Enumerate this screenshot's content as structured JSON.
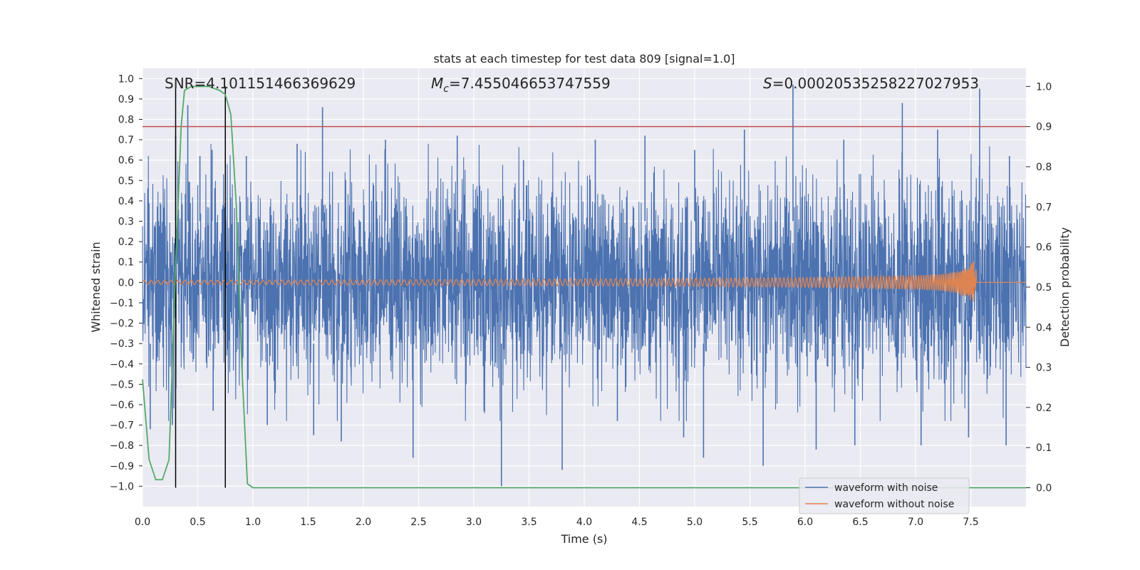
{
  "chart_data": {
    "type": "line",
    "title": "stats at each timestep for test data 809 [signal=1.0]",
    "xlabel": "Time (s)",
    "ylabel_left": "Whitened strain",
    "ylabel_right": "Detection probability",
    "xlim": [
      0.0,
      8.0
    ],
    "ylim_left": [
      -1.1,
      1.05
    ],
    "ylim_right": [
      -0.047,
      1.045
    ],
    "x_ticks": [
      0.0,
      0.5,
      1.0,
      1.5,
      2.0,
      2.5,
      3.0,
      3.5,
      4.0,
      4.5,
      5.0,
      5.5,
      6.0,
      6.5,
      7.0,
      7.5
    ],
    "x_tick_labels": [
      "0.0",
      "0.5",
      "1.0",
      "1.5",
      "2.0",
      "2.5",
      "3.0",
      "3.5",
      "4.0",
      "4.5",
      "5.0",
      "5.5",
      "6.0",
      "6.5",
      "7.0",
      "7.5"
    ],
    "y_left_ticks": [
      1.0,
      0.9,
      0.8,
      0.7,
      0.6,
      0.5,
      0.4,
      0.3,
      0.2,
      0.1,
      0.0,
      -0.1,
      -0.2,
      -0.3,
      -0.4,
      -0.5,
      -0.6,
      -0.7,
      -0.8,
      -0.9,
      -1.0
    ],
    "y_left_tick_labels": [
      "1.0",
      "0.9",
      "0.8",
      "0.7",
      "0.6",
      "0.5",
      "0.4",
      "0.3",
      "0.2",
      "0.1",
      "0.0",
      "−0.1",
      "−0.2",
      "−0.3",
      "−0.4",
      "−0.5",
      "−0.6",
      "−0.7",
      "−0.8",
      "−0.9",
      "−1.0"
    ],
    "y_right_ticks": [
      1.0,
      0.9,
      0.8,
      0.7,
      0.6,
      0.5,
      0.4,
      0.3,
      0.2,
      0.1,
      0.0
    ],
    "y_right_tick_labels": [
      "1.0",
      "0.9",
      "0.8",
      "0.7",
      "0.6",
      "0.5",
      "0.4",
      "0.3",
      "0.2",
      "0.1",
      "0.0"
    ],
    "annotations": {
      "snr": "SNR=4.101151466369629",
      "mc_symbol": "M",
      "mc_sub": "c",
      "mc_value": "=7.455046653747559",
      "s_symbol": "S",
      "s_value": "=0.00020535258227027953"
    },
    "series": [
      {
        "name": "waveform with noise",
        "color": "#4c72b0",
        "axis": "left",
        "envelope_typical": 0.3,
        "spikes": [
          {
            "x": 0.41,
            "y": 0.87
          },
          {
            "x": 0.3,
            "y": 0.72
          },
          {
            "x": 0.52,
            "y": 0.62
          },
          {
            "x": 0.63,
            "y": 0.65
          },
          {
            "x": 0.94,
            "y": 0.62
          },
          {
            "x": 1.4,
            "y": 0.68
          },
          {
            "x": 1.63,
            "y": 0.86
          },
          {
            "x": 2.2,
            "y": 0.7
          },
          {
            "x": 2.85,
            "y": 0.72
          },
          {
            "x": 3.45,
            "y": 0.6
          },
          {
            "x": 4.1,
            "y": 0.7
          },
          {
            "x": 4.55,
            "y": 0.72
          },
          {
            "x": 5.0,
            "y": 0.65
          },
          {
            "x": 5.45,
            "y": 0.75
          },
          {
            "x": 5.89,
            "y": 0.97
          },
          {
            "x": 6.35,
            "y": 0.7
          },
          {
            "x": 6.88,
            "y": 0.88
          },
          {
            "x": 7.2,
            "y": 0.75
          },
          {
            "x": 7.58,
            "y": 0.95
          },
          {
            "x": 7.85,
            "y": 0.62
          },
          {
            "x": 0.07,
            "y": -0.72
          },
          {
            "x": 0.27,
            "y": -0.7
          },
          {
            "x": 0.64,
            "y": -0.63
          },
          {
            "x": 1.13,
            "y": -0.7
          },
          {
            "x": 1.55,
            "y": -0.75
          },
          {
            "x": 1.8,
            "y": -0.78
          },
          {
            "x": 2.45,
            "y": -0.86
          },
          {
            "x": 3.25,
            "y": -1.0
          },
          {
            "x": 3.8,
            "y": -0.92
          },
          {
            "x": 4.3,
            "y": -0.68
          },
          {
            "x": 4.9,
            "y": -0.76
          },
          {
            "x": 5.08,
            "y": -0.86
          },
          {
            "x": 5.62,
            "y": -0.9
          },
          {
            "x": 6.1,
            "y": -0.82
          },
          {
            "x": 6.45,
            "y": -0.8
          },
          {
            "x": 7.05,
            "y": -0.8
          },
          {
            "x": 7.48,
            "y": -0.76
          },
          {
            "x": 7.82,
            "y": -0.8
          }
        ]
      },
      {
        "name": "waveform without noise",
        "color": "#dd8452",
        "axis": "left",
        "x": [
          0.0,
          1.0,
          2.0,
          3.0,
          4.0,
          5.0,
          6.0,
          6.5,
          7.0,
          7.2,
          7.35,
          7.45,
          7.5,
          7.53,
          7.55,
          7.58,
          8.0
        ],
        "amplitude": [
          0.01,
          0.011,
          0.013,
          0.015,
          0.017,
          0.02,
          0.024,
          0.028,
          0.035,
          0.04,
          0.05,
          0.07,
          0.09,
          0.11,
          0.06,
          0.0,
          0.0
        ]
      },
      {
        "name": "detection probability",
        "color": "#55a868",
        "axis": "right",
        "x": [
          0.0,
          0.06,
          0.12,
          0.18,
          0.24,
          0.3,
          0.35,
          0.38,
          0.44,
          0.5,
          0.6,
          0.7,
          0.75,
          0.8,
          0.85,
          0.9,
          0.95,
          1.0,
          8.0
        ],
        "y": [
          0.27,
          0.07,
          0.02,
          0.02,
          0.07,
          0.55,
          0.9,
          0.99,
          1.0,
          1.0,
          1.0,
          0.99,
          0.98,
          0.93,
          0.7,
          0.3,
          0.01,
          0.0,
          0.0
        ]
      }
    ],
    "threshold_line": {
      "axis": "right",
      "y": 0.9,
      "color": "#c44e52"
    },
    "vertical_lines": [
      {
        "x": 0.3,
        "color": "#000000"
      },
      {
        "x": 0.75,
        "color": "#000000"
      }
    ],
    "legend": {
      "placement": "lower-right",
      "entries": [
        {
          "label": "waveform with noise",
          "color": "#4c72b0"
        },
        {
          "label": "waveform without noise",
          "color": "#dd8452"
        }
      ]
    },
    "grid": true,
    "background": "#eaeaf2"
  }
}
